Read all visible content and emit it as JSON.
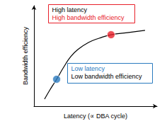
{
  "chart_data": {
    "type": "line",
    "xlabel": "Latency (∝ DBA cycle)",
    "ylabel": "Bandwidth efficiency",
    "xlim": [
      0,
      10
    ],
    "ylim": [
      0,
      10
    ],
    "tick_labels": false,
    "grid": false,
    "series": [
      {
        "type": "line",
        "color": "#000000",
        "x": [
          0.86,
          1.26,
          1.84,
          2.41,
          2.99,
          3.56,
          4.43,
          5.29,
          6.26,
          7.59,
          9.02
        ],
        "values": [
          0.7,
          1.55,
          2.68,
          3.87,
          4.93,
          5.63,
          6.34,
          6.76,
          7.11,
          7.32,
          7.54
        ]
      },
      {
        "type": "scatter",
        "color": "#e8202a",
        "x": [
          6.26
        ],
        "values": [
          7.11
        ]
      },
      {
        "type": "scatter",
        "color": "#2a7bbf",
        "x": [
          1.84
        ],
        "values": [
          2.68
        ]
      }
    ],
    "annotations": [
      {
        "color": "#e8202a",
        "lines": [
          {
            "text": "High latency",
            "color": "#000000"
          },
          {
            "text": "High bandwidth efficiency",
            "color": "#e8202a"
          }
        ]
      },
      {
        "color": "#2a7bbf",
        "lines": [
          {
            "text": "Low latency",
            "color": "#2a7bbf"
          },
          {
            "text": "Low bandwidth efficiency",
            "color": "#000000"
          }
        ]
      }
    ]
  }
}
